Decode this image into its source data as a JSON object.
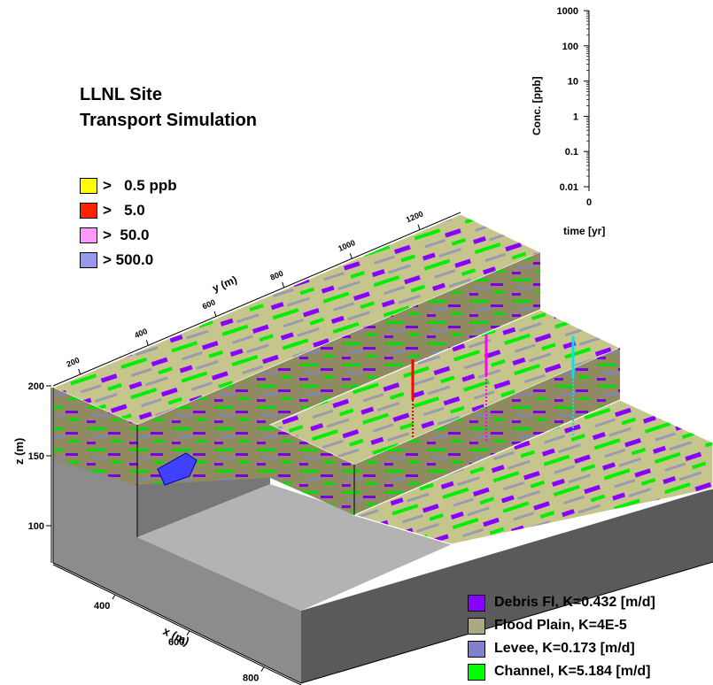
{
  "title_lines": [
    "LLNL Site",
    "Transport Simulation"
  ],
  "concentration_legend": [
    {
      "label": ">   0.5 ppb",
      "color": "#ffff00"
    },
    {
      "label": ">   5.0",
      "color": "#ff2200"
    },
    {
      "label": ">  50.0",
      "color": "#ff99ff"
    },
    {
      "label": "> 500.0",
      "color": "#9999ee"
    }
  ],
  "facies_legend": [
    {
      "label": "Debris Fl, K=0.432 [m/d]",
      "color": "#8800ff"
    },
    {
      "label": "Flood Plain, K=4E-5",
      "color": "#aaa980"
    },
    {
      "label": "Levee, K=0.173 [m/d]",
      "color": "#8080cc"
    },
    {
      "label": "Channel, K=5.184 [m/d]",
      "color": "#00ff00"
    }
  ],
  "chart_data": [
    {
      "type": "line",
      "title": "",
      "xlabel": "time [yr]",
      "ylabel": "Conc. [ppb]",
      "yscale": "log",
      "ylim": [
        0.01,
        1000
      ],
      "y_ticks": [
        "1000",
        "100",
        "10",
        "1",
        "0.1",
        "0.01"
      ],
      "x_ticks": [
        "0"
      ],
      "series": []
    },
    {
      "type": "3d-block",
      "axes": {
        "x": {
          "label": "x (m)",
          "ticks": [
            "400",
            "600",
            "800"
          ]
        },
        "y": {
          "label": "y (m)",
          "ticks": [
            "200",
            "400",
            "600",
            "800",
            "1000",
            "1200"
          ]
        },
        "z": {
          "label": "z (m)",
          "ticks": [
            "200",
            "150",
            "100"
          ]
        }
      },
      "monitoring_wells": [
        {
          "color": "#ff0000"
        },
        {
          "color": "#ff00ff"
        },
        {
          "color": "#00e5e5"
        }
      ]
    }
  ]
}
